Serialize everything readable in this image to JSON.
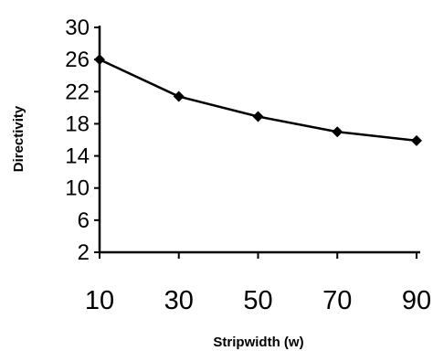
{
  "chart_data": {
    "type": "line",
    "title": "",
    "xlabel": "Stripwidth (w)",
    "ylabel": "Directivity",
    "x": [
      10,
      30,
      50,
      70,
      90
    ],
    "xticks": [
      "10",
      "30",
      "50",
      "70",
      "90"
    ],
    "yticks": [
      "30",
      "26",
      "22",
      "18",
      "14",
      "10",
      "6",
      "2"
    ],
    "xlim": [
      10,
      90
    ],
    "ylim": [
      2,
      30
    ],
    "grid": false,
    "series": [
      {
        "values": [
          26,
          21.4,
          18.9,
          17.0,
          15.9
        ],
        "color": "#000000"
      }
    ]
  }
}
